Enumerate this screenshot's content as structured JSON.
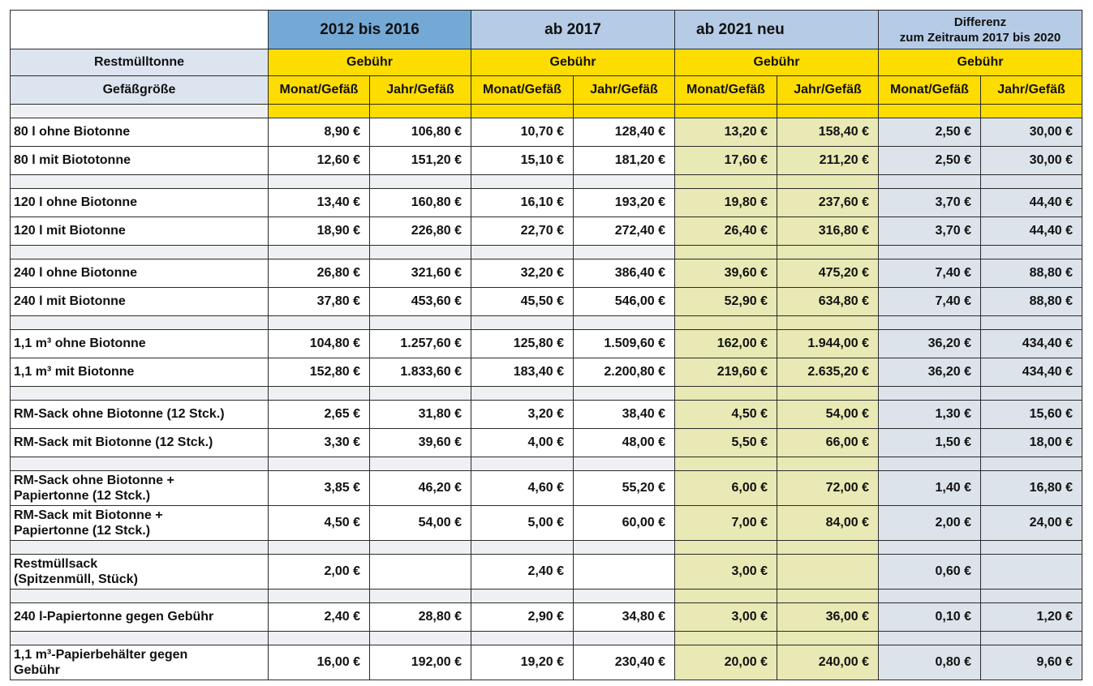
{
  "header": {
    "periods": [
      "2012 bis 2016",
      "ab 2017",
      "ab 2021 neu"
    ],
    "diff_line1": "Differenz",
    "diff_line2": "zum Zeitraum 2017 bis 2020",
    "row2_label": "Restmülltonne",
    "gebuehr": "Gebühr",
    "row3_label": "Gefäßgröße",
    "monat": "Monat/Gefäß",
    "jahr": "Jahr/Gefäß"
  },
  "rows": [
    {
      "type": "spacer"
    },
    {
      "type": "data",
      "label": "80 l ohne Biotonne",
      "values": [
        "8,90 €",
        "106,80 €",
        "10,70 €",
        "128,40 €",
        "13,20 €",
        "158,40 €",
        "2,50 €",
        "30,00 €"
      ]
    },
    {
      "type": "data",
      "label": "80 l mit Biototonne",
      "values": [
        "12,60 €",
        "151,20 €",
        "15,10 €",
        "181,20 €",
        "17,60 €",
        "211,20 €",
        "2,50 €",
        "30,00 €"
      ]
    },
    {
      "type": "spacer"
    },
    {
      "type": "data",
      "label": "120 l ohne Biotonne",
      "values": [
        "13,40 €",
        "160,80 €",
        "16,10 €",
        "193,20 €",
        "19,80 €",
        "237,60 €",
        "3,70 €",
        "44,40 €"
      ]
    },
    {
      "type": "data",
      "label": "120 l mit Biotonne",
      "values": [
        "18,90 €",
        "226,80 €",
        "22,70 €",
        "272,40 €",
        "26,40 €",
        "316,80 €",
        "3,70 €",
        "44,40 €"
      ]
    },
    {
      "type": "spacer"
    },
    {
      "type": "data",
      "label": "240 l ohne Biotonne",
      "values": [
        "26,80 €",
        "321,60 €",
        "32,20 €",
        "386,40 €",
        "39,60 €",
        "475,20 €",
        "7,40 €",
        "88,80 €"
      ]
    },
    {
      "type": "data",
      "label": "240 l mit Biotonne",
      "values": [
        "37,80 €",
        "453,60 €",
        "45,50 €",
        "546,00 €",
        "52,90 €",
        "634,80 €",
        "7,40 €",
        "88,80 €"
      ]
    },
    {
      "type": "spacer"
    },
    {
      "type": "data",
      "label": "1,1 m³ ohne Biotonne",
      "values": [
        "104,80 €",
        "1.257,60 €",
        "125,80 €",
        "1.509,60 €",
        "162,00 €",
        "1.944,00 €",
        "36,20 €",
        "434,40 €"
      ]
    },
    {
      "type": "data",
      "label": "1,1 m³ mit Biotonne",
      "values": [
        "152,80 €",
        "1.833,60 €",
        "183,40 €",
        "2.200,80 €",
        "219,60 €",
        "2.635,20 €",
        "36,20 €",
        "434,40 €"
      ]
    },
    {
      "type": "spacer"
    },
    {
      "type": "data",
      "label": "RM-Sack ohne Biotonne (12 Stck.)",
      "values": [
        "2,65 €",
        "31,80 €",
        "3,20 €",
        "38,40 €",
        "4,50 €",
        "54,00 €",
        "1,30 €",
        "15,60 €"
      ]
    },
    {
      "type": "data",
      "label": "RM-Sack mit Biotonne (12 Stck.)",
      "values": [
        "3,30 €",
        "39,60 €",
        "4,00 €",
        "48,00 €",
        "5,50 €",
        "66,00 €",
        "1,50 €",
        "18,00 €"
      ]
    },
    {
      "type": "spacer"
    },
    {
      "type": "data2",
      "label1": "RM-Sack ohne Biotonne  +",
      "label2": "Papiertonne (12 Stck.)",
      "values": [
        "3,85 €",
        "46,20 €",
        "4,60 €",
        "55,20 €",
        "6,00 €",
        "72,00 €",
        "1,40 €",
        "16,80 €"
      ]
    },
    {
      "type": "data2",
      "label1": "RM-Sack mit Biotonne +",
      "label2": "Papiertonne (12 Stck.)",
      "values": [
        "4,50 €",
        "54,00 €",
        "5,00 €",
        "60,00 €",
        "7,00 €",
        "84,00 €",
        "2,00 €",
        "24,00 €"
      ]
    },
    {
      "type": "spacer"
    },
    {
      "type": "data2",
      "label1": "Restmüllsack",
      "label2": "(Spitzenmüll, Stück)",
      "values": [
        "2,00 €",
        "",
        "2,40 €",
        "",
        "3,00 €",
        "",
        "0,60 €",
        ""
      ]
    },
    {
      "type": "spacer"
    },
    {
      "type": "data",
      "label": "240 l-Papiertonne gegen Gebühr",
      "values": [
        "2,40 €",
        "28,80 €",
        "2,90 €",
        "34,80 €",
        "3,00 €",
        "36,00 €",
        "0,10 €",
        "1,20 €"
      ]
    },
    {
      "type": "spacer"
    },
    {
      "type": "data2",
      "label1": "1,1 m³-Papierbehälter gegen",
      "label2": "Gebühr",
      "values": [
        "16,00 €",
        "192,00 €",
        "19,20 €",
        "230,40 €",
        "20,00 €",
        "240,00 €",
        "0,80 €",
        "9,60 €"
      ]
    }
  ]
}
